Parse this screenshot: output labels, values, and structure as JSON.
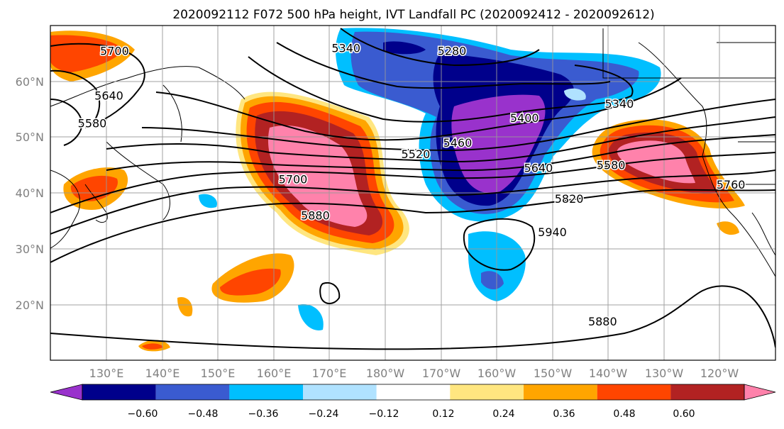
{
  "title": "2020092112 F072 500 hPa height, IVT Landfall PC (2020092412 - 2020092612)",
  "map": {
    "lon_labels": [
      "130°E",
      "140°E",
      "150°E",
      "160°E",
      "170°E",
      "180°W",
      "170°W",
      "160°W",
      "150°W",
      "140°W",
      "130°W",
      "120°W"
    ],
    "lat_labels": [
      "60°N",
      "50°N",
      "40°N",
      "30°N",
      "20°N"
    ],
    "lon_range": [
      120,
      250
    ],
    "lat_range": [
      10,
      70
    ],
    "contour_labels": [
      {
        "text": "5700",
        "lon": 131.5,
        "lat": 65.5
      },
      {
        "text": "5640",
        "lon": 130.5,
        "lat": 57.5
      },
      {
        "text": "5580",
        "lon": 127.5,
        "lat": 52.5
      },
      {
        "text": "5340",
        "lon": 173,
        "lat": 66
      },
      {
        "text": "5280",
        "lon": 192,
        "lat": 65.5
      },
      {
        "text": "5340",
        "lon": 222,
        "lat": 56
      },
      {
        "text": "5400",
        "lon": 205,
        "lat": 53.5
      },
      {
        "text": "5460",
        "lon": 193,
        "lat": 49
      },
      {
        "text": "5520",
        "lon": 185.5,
        "lat": 47
      },
      {
        "text": "5580",
        "lon": 220.5,
        "lat": 45
      },
      {
        "text": "5640",
        "lon": 207.5,
        "lat": 44.5
      },
      {
        "text": "5700",
        "lon": 163.5,
        "lat": 42.5
      },
      {
        "text": "5760",
        "lon": 242,
        "lat": 41.5
      },
      {
        "text": "5820",
        "lon": 213,
        "lat": 39
      },
      {
        "text": "5880",
        "lon": 167.5,
        "lat": 36
      },
      {
        "text": "5940",
        "lon": 210,
        "lat": 33
      },
      {
        "text": "5880",
        "lon": 219,
        "lat": 17
      }
    ]
  },
  "colorbar": {
    "ticks": [
      "−0.60",
      "−0.48",
      "−0.36",
      "−0.24",
      "−0.12",
      "0.12",
      "0.24",
      "0.36",
      "0.48",
      "0.60"
    ],
    "colors": [
      "#9932cc",
      "#00008b",
      "#3a5bd0",
      "#00bfff",
      "#b0e2ff",
      "#ffffff",
      "#ffe680",
      "#ffa500",
      "#ff4500",
      "#b22222",
      "#ff82ab"
    ]
  }
}
